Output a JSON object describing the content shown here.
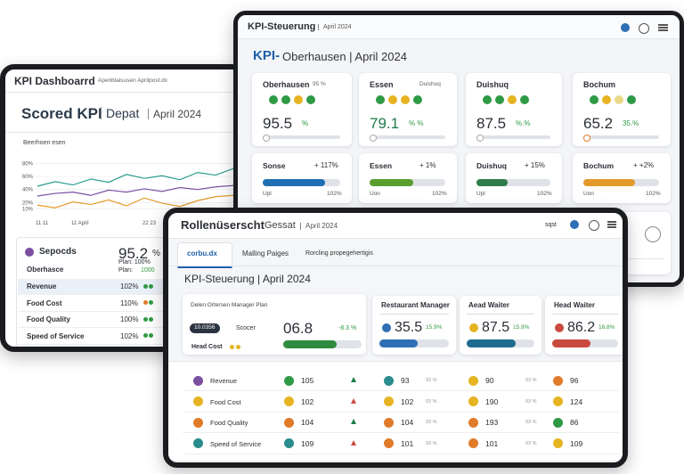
{
  "left": {
    "app": "KPI Dashboarrd",
    "subtitle": "Apenblaisusen Aprilpost.dx",
    "heading": "Scored KPI",
    "dept": "Depat",
    "date": "April 2024",
    "chart_data": {
      "type": "line",
      "title": "Beerhoen esen",
      "categories": [
        "11 11",
        null,
        "11 April",
        null,
        null,
        null,
        "22 23",
        null,
        null,
        null,
        null,
        null
      ],
      "series": [
        {
          "color": "#2a9d8f",
          "values": [
            45,
            52,
            47,
            56,
            51,
            63,
            57,
            61,
            55,
            66,
            62,
            72
          ]
        },
        {
          "color": "#7b4fa0",
          "values": [
            30,
            34,
            36,
            31,
            39,
            36,
            41,
            37,
            43,
            40,
            44,
            46
          ]
        },
        {
          "color": "#e39a2b",
          "values": [
            16,
            12,
            21,
            17,
            24,
            15,
            27,
            19,
            14,
            23,
            29,
            31
          ]
        }
      ],
      "ylim": [
        0,
        90
      ],
      "yticks": [
        {
          "value": 10,
          "label": "10%"
        },
        {
          "value": 20,
          "label": "20%"
        },
        {
          "value": 40,
          "label": "40%"
        },
        {
          "value": 60,
          "label": "60%"
        },
        {
          "value": 80,
          "label": "80%"
        }
      ],
      "grid": true
    },
    "card": {
      "title": "Sepocds",
      "value": "95.2",
      "unit": "%",
      "plan1": "Plan: 100%",
      "plan2_label": "Plan:",
      "plan2": "1000",
      "location": "Oberhasce",
      "rows": [
        [
          "Revenue",
          "102%"
        ],
        [
          "Food Cost",
          "110%"
        ],
        [
          "Food Quality",
          "100%"
        ],
        [
          "Speed of Service",
          "102%"
        ]
      ]
    }
  },
  "right": {
    "app": "KPI-Steuerung",
    "date": "April 2024",
    "title_kpi": "KPI-",
    "title_rest": "Oberhausen | April 2024",
    "cards": [
      {
        "name": "Oberhausen",
        "note": "95 %",
        "value": "95.5",
        "unit": "%"
      },
      {
        "name": "Essen",
        "note": "Duishuq",
        "value": "79.1",
        "unit": "% %"
      },
      {
        "name": "Duishuq",
        "note": "",
        "value": "87.5",
        "unit": "%.%"
      },
      {
        "name": "Bochum",
        "note": "",
        "value": "65.2",
        "unit": "35.%"
      }
    ],
    "cards2": [
      {
        "name": "Sonse",
        "change": "+ 117%",
        "progress": 80,
        "color": "#1f6fb2",
        "left": "Upl",
        "right": "102%"
      },
      {
        "name": "Essen",
        "change": "+ 1%",
        "progress": 58,
        "color": "#5a9e2f",
        "left": "Uon",
        "right": "102%"
      },
      {
        "name": "Duishuq",
        "change": "+ 15%",
        "progress": 42,
        "color": "#2f7d4a",
        "left": "Upl",
        "right": "102%"
      },
      {
        "name": "Bochum",
        "change": "+ +2%",
        "progress": 68,
        "color": "#e39a2b",
        "left": "Uon",
        "right": "102%"
      }
    ]
  },
  "front": {
    "app": "Rollenüserscht",
    "group": "Gessat",
    "date": "April 2024",
    "user": "sqst",
    "tabs": [
      "corbu.dx",
      "Malling Paiges",
      "Rorcling propegehertigis"
    ],
    "title": "KPI-Steuerung | April 2024",
    "panel": {
      "caption": "Delen.Ortersen Manager Plan",
      "pill": "10.0356",
      "label": "Scocer",
      "value": "06.8",
      "change": "-8.3 %",
      "progress": 68,
      "color": "#2e8b3e",
      "sub": "Head Cost"
    },
    "columns": [
      {
        "name": "Restaurant Manager",
        "value": "35.5",
        "change": "15.9%",
        "progress": 55,
        "color": "#2e6fb5"
      },
      {
        "name": "Aead Waiter",
        "value": "87.5",
        "change": "15.9%",
        "progress": 72,
        "color": "#1f6b8f"
      },
      {
        "name": "Head Waiter",
        "value": "86.2",
        "change": "16.8%",
        "progress": 58,
        "color": "#c94a3f"
      }
    ],
    "rows": [
      {
        "label": "Revenue",
        "cells": [
          "105",
          "93",
          "90",
          "96"
        ],
        "notes": [
          "93 %",
          "93 %"
        ]
      },
      {
        "label": "Food Cost",
        "cells": [
          "102",
          "102",
          "190",
          "124"
        ],
        "notes": [
          "93 %",
          "93 %"
        ]
      },
      {
        "label": "Food Quality",
        "cells": [
          "104",
          "104",
          "193",
          "86"
        ],
        "notes": [
          "93 %",
          "93 %"
        ]
      },
      {
        "label": "Speed of Service",
        "cells": [
          "109",
          "101",
          "101",
          "109"
        ],
        "notes": [
          "93 %",
          "93 %"
        ]
      }
    ]
  }
}
